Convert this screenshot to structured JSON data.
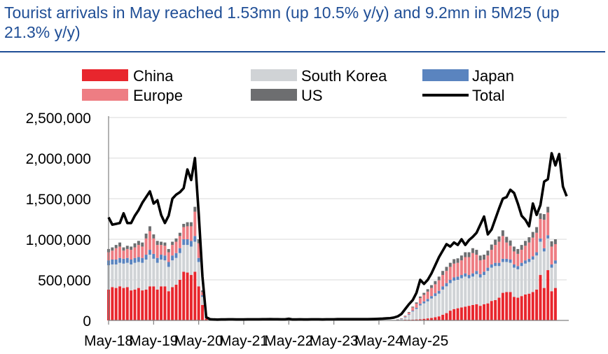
{
  "chart_data": {
    "type": "bar",
    "title": "Tourist arrivals in May reached 1.53mn (up 10.5% y/y) and 9.2mn in 5M25 (up 21.3% y/y)",
    "stacked": true,
    "x_tick_labels": [
      "May-18",
      "May-19",
      "May-20",
      "May-21",
      "May-22",
      "May-23",
      "May-24",
      "May-25"
    ],
    "y_tick_labels": [
      "0",
      "500,000",
      "1,000,000",
      "1,500,000",
      "2,000,000",
      "2,500,000"
    ],
    "ylim": [
      0,
      2500000
    ],
    "start_month": "May-18",
    "series": [
      {
        "name": "China",
        "color": "#e8262d",
        "values": [
          380000,
          410000,
          400000,
          420000,
          400000,
          410000,
          370000,
          380000,
          400000,
          370000,
          380000,
          420000,
          420000,
          380000,
          420000,
          420000,
          360000,
          410000,
          440000,
          500000,
          600000,
          590000,
          560000,
          600000,
          420000,
          190000,
          22000,
          0,
          0,
          0,
          0,
          0,
          0,
          0,
          0,
          0,
          0,
          0,
          0,
          0,
          0,
          0,
          0,
          0,
          0,
          0,
          0,
          0,
          0,
          0,
          0,
          0,
          0,
          0,
          0,
          0,
          0,
          0,
          0,
          0,
          0,
          0,
          0,
          0,
          0,
          0,
          0,
          0,
          0,
          0,
          0,
          0,
          0,
          0,
          0,
          0,
          0,
          2000,
          5000,
          8000,
          8000,
          10000,
          12000,
          15000,
          20000,
          25000,
          30000,
          40000,
          50000,
          70000,
          90000,
          120000,
          140000,
          150000,
          160000,
          170000,
          180000,
          190000,
          200000,
          180000,
          200000,
          210000,
          240000,
          250000,
          280000,
          340000,
          350000,
          350000,
          290000,
          280000,
          300000,
          320000,
          330000,
          350000,
          380000,
          560000,
          400000,
          620000,
          360000,
          400000
        ]
      },
      {
        "name": "South Korea",
        "color": "#d0d3d6",
        "values": [
          300000,
          280000,
          290000,
          290000,
          300000,
          300000,
          320000,
          330000,
          320000,
          340000,
          370000,
          390000,
          340000,
          330000,
          330000,
          320000,
          300000,
          330000,
          330000,
          330000,
          330000,
          340000,
          350000,
          370000,
          300000,
          100000,
          8000,
          0,
          0,
          0,
          0,
          0,
          0,
          0,
          0,
          0,
          0,
          0,
          0,
          0,
          0,
          0,
          0,
          0,
          0,
          0,
          0,
          0,
          0,
          0,
          0,
          0,
          0,
          0,
          0,
          0,
          0,
          0,
          0,
          0,
          0,
          0,
          0,
          0,
          0,
          0,
          0,
          0,
          0,
          0,
          0,
          0,
          0,
          0,
          0,
          0,
          0,
          5000,
          12000,
          30000,
          60000,
          100000,
          130000,
          170000,
          190000,
          210000,
          240000,
          260000,
          280000,
          310000,
          330000,
          340000,
          350000,
          350000,
          360000,
          370000,
          340000,
          350000,
          370000,
          350000,
          360000,
          400000,
          410000,
          420000,
          390000,
          380000,
          370000,
          360000,
          360000,
          350000,
          370000,
          380000,
          390000,
          400000,
          420000,
          410000,
          450000,
          390000,
          290000,
          300000
        ]
      },
      {
        "name": "Japan",
        "color": "#5a84bf",
        "values": [
          60000,
          60000,
          60000,
          60000,
          60000,
          60000,
          60000,
          60000,
          60000,
          60000,
          60000,
          60000,
          60000,
          60000,
          60000,
          60000,
          60000,
          60000,
          60000,
          60000,
          70000,
          70000,
          70000,
          70000,
          50000,
          20000,
          2000,
          0,
          0,
          0,
          0,
          0,
          0,
          0,
          0,
          0,
          0,
          0,
          0,
          0,
          0,
          0,
          0,
          0,
          0,
          0,
          0,
          0,
          0,
          0,
          0,
          0,
          0,
          0,
          0,
          0,
          0,
          0,
          0,
          0,
          0,
          0,
          0,
          0,
          0,
          0,
          0,
          0,
          0,
          0,
          0,
          0,
          0,
          0,
          0,
          0,
          0,
          1000,
          2000,
          5000,
          8000,
          10000,
          15000,
          20000,
          25000,
          30000,
          30000,
          35000,
          35000,
          40000,
          40000,
          40000,
          40000,
          40000,
          40000,
          40000,
          40000,
          40000,
          40000,
          40000,
          40000,
          40000,
          40000,
          40000,
          40000,
          40000,
          40000,
          40000,
          40000,
          40000,
          40000,
          40000,
          40000,
          40000,
          40000,
          40000,
          40000,
          40000,
          40000,
          40000
        ]
      },
      {
        "name": "Europe",
        "color": "#ee7d83",
        "values": [
          100000,
          110000,
          140000,
          140000,
          100000,
          110000,
          120000,
          130000,
          150000,
          140000,
          200000,
          230000,
          190000,
          160000,
          120000,
          120000,
          120000,
          130000,
          140000,
          150000,
          150000,
          160000,
          180000,
          300000,
          180000,
          40000,
          3000,
          0,
          0,
          0,
          0,
          0,
          0,
          0,
          0,
          0,
          0,
          0,
          0,
          0,
          0,
          0,
          0,
          0,
          0,
          0,
          0,
          0,
          0,
          0,
          0,
          0,
          0,
          0,
          0,
          0,
          0,
          0,
          0,
          0,
          0,
          0,
          0,
          0,
          0,
          0,
          0,
          0,
          0,
          0,
          0,
          0,
          0,
          0,
          0,
          0,
          0,
          3000,
          5000,
          10000,
          20000,
          40000,
          50000,
          70000,
          80000,
          90000,
          100000,
          110000,
          130000,
          140000,
          150000,
          160000,
          170000,
          170000,
          180000,
          200000,
          220000,
          250000,
          200000,
          170000,
          150000,
          150000,
          180000,
          220000,
          260000,
          280000,
          200000,
          170000,
          160000,
          150000,
          160000,
          180000,
          200000,
          230000,
          240000,
          240000,
          350000,
          280000,
          220000,
          200000
        ]
      },
      {
        "name": "US",
        "color": "#6d6e70",
        "values": [
          40000,
          40000,
          40000,
          50000,
          40000,
          40000,
          40000,
          50000,
          50000,
          50000,
          60000,
          60000,
          50000,
          50000,
          40000,
          40000,
          40000,
          40000,
          40000,
          40000,
          40000,
          50000,
          50000,
          60000,
          50000,
          20000,
          2000,
          0,
          0,
          0,
          0,
          0,
          0,
          0,
          0,
          0,
          0,
          0,
          0,
          0,
          0,
          0,
          0,
          0,
          0,
          0,
          0,
          0,
          0,
          0,
          0,
          0,
          0,
          0,
          0,
          0,
          0,
          0,
          0,
          0,
          0,
          0,
          0,
          0,
          0,
          0,
          0,
          0,
          0,
          0,
          0,
          0,
          0,
          0,
          0,
          0,
          0,
          1000,
          2000,
          5000,
          8000,
          10000,
          15000,
          20000,
          25000,
          30000,
          35000,
          40000,
          45000,
          50000,
          50000,
          50000,
          55000,
          55000,
          60000,
          60000,
          60000,
          60000,
          60000,
          60000,
          60000,
          60000,
          65000,
          65000,
          65000,
          70000,
          70000,
          65000,
          60000,
          60000,
          60000,
          60000,
          65000,
          70000,
          70000,
          70000,
          70000,
          70000,
          65000,
          60000
        ]
      },
      {
        "name": "Total",
        "color": "#000000",
        "type": "line",
        "values": [
          1270000,
          1180000,
          1190000,
          1200000,
          1320000,
          1200000,
          1200000,
          1290000,
          1360000,
          1450000,
          1520000,
          1590000,
          1440000,
          1480000,
          1300000,
          1200000,
          1290000,
          1500000,
          1550000,
          1580000,
          1630000,
          1860000,
          1730000,
          2000000,
          1320000,
          540000,
          40000,
          15000,
          12000,
          10000,
          12000,
          12000,
          14000,
          14000,
          12000,
          12000,
          12000,
          14000,
          14000,
          14000,
          14000,
          15000,
          15000,
          16000,
          15000,
          15000,
          14000,
          14000,
          20000,
          12000,
          12000,
          14000,
          12000,
          12000,
          14000,
          14000,
          14000,
          12000,
          14000,
          14000,
          14000,
          16000,
          16000,
          16000,
          16000,
          16000,
          16000,
          16000,
          16000,
          16000,
          17000,
          18000,
          20000,
          22000,
          25000,
          28000,
          35000,
          50000,
          80000,
          140000,
          200000,
          250000,
          340000,
          500000,
          450000,
          500000,
          580000,
          680000,
          780000,
          860000,
          940000,
          910000,
          960000,
          930000,
          1000000,
          930000,
          990000,
          1030000,
          1080000,
          1180000,
          1280000,
          1060000,
          1120000,
          1250000,
          1380000,
          1500000,
          1520000,
          1610000,
          1570000,
          1440000,
          1290000,
          1240000,
          1160000,
          1440000,
          1300000,
          1420000,
          1710000,
          1740000,
          2060000,
          1910000,
          2050000,
          1650000,
          1530000
        ]
      }
    ]
  },
  "legend_labels": [
    "China",
    "South Korea",
    "Japan",
    "Europe",
    "US",
    "Total"
  ]
}
